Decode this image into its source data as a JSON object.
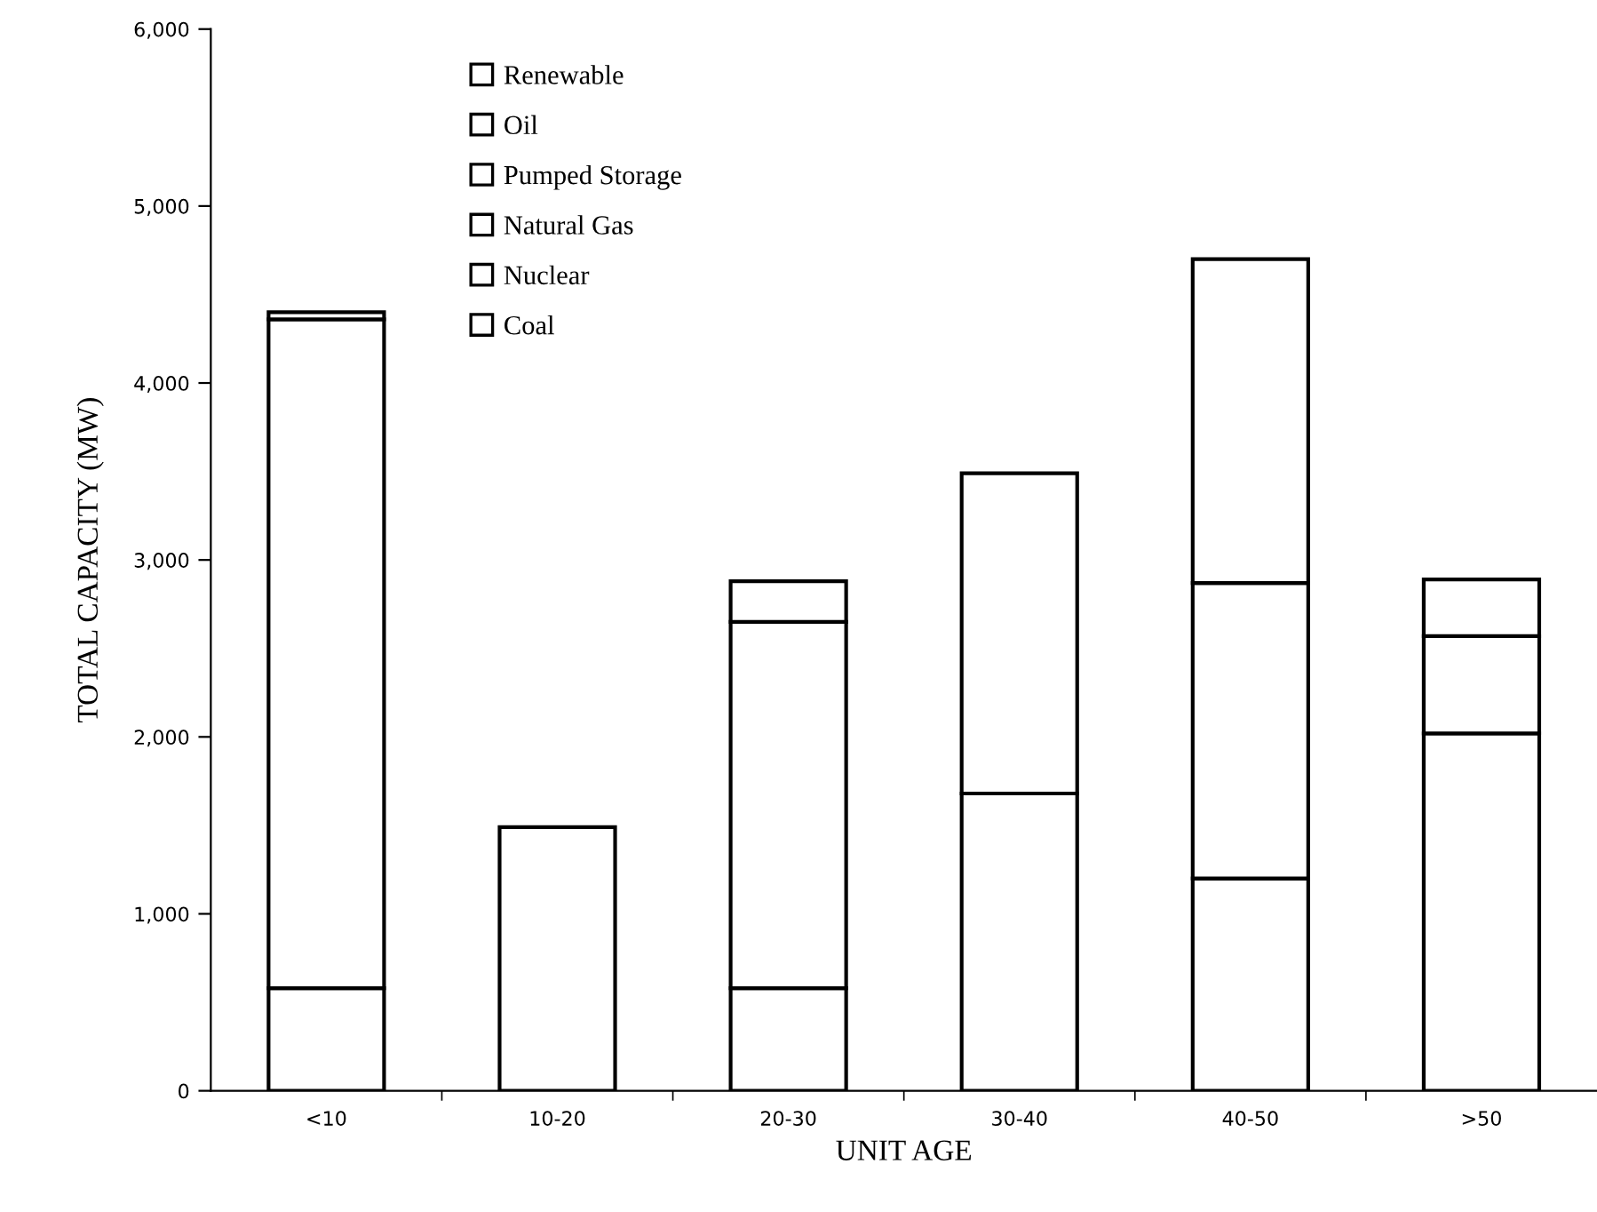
{
  "chart_data": {
    "type": "bar",
    "stacked": true,
    "xlabel": "UNIT AGE",
    "ylabel": "TOTAL CAPACITY (MW)",
    "categories": [
      "<10",
      "10-20",
      "20-30",
      "30-40",
      "40-50",
      ">50"
    ],
    "series": [
      {
        "name": "Coal",
        "color": "#ffffff",
        "values": [
          580,
          null,
          580,
          1680,
          1200,
          2020
        ]
      },
      {
        "name": "Nuclear",
        "color": "#ffffff",
        "values": [
          null,
          1490,
          2070,
          1810,
          null,
          null
        ]
      },
      {
        "name": "Natural Gas",
        "color": "#ffffff",
        "values": [
          3780,
          null,
          null,
          null,
          1670,
          550
        ]
      },
      {
        "name": "Pumped Storage",
        "color": "#ffffff",
        "values": [
          null,
          null,
          230,
          null,
          null,
          null
        ]
      },
      {
        "name": "Oil",
        "color": "#ffffff",
        "values": [
          null,
          null,
          null,
          null,
          1830,
          320
        ]
      },
      {
        "name": "Renewable",
        "color": "#ffffff",
        "values": [
          40,
          null,
          null,
          null,
          null,
          null
        ]
      }
    ],
    "ylim": [
      0,
      6000
    ],
    "yticks": [
      0,
      {
        "value": 1000,
        "label": "1,000"
      },
      {
        "value": 2000,
        "label": "2,000"
      },
      {
        "value": 3000,
        "label": "3,000"
      },
      {
        "value": 4000,
        "label": "4,000"
      },
      {
        "value": 5000,
        "label": "5,000"
      },
      {
        "value": 6000,
        "label": "6,000"
      }
    ],
    "grid": false,
    "legend": "top left"
  }
}
